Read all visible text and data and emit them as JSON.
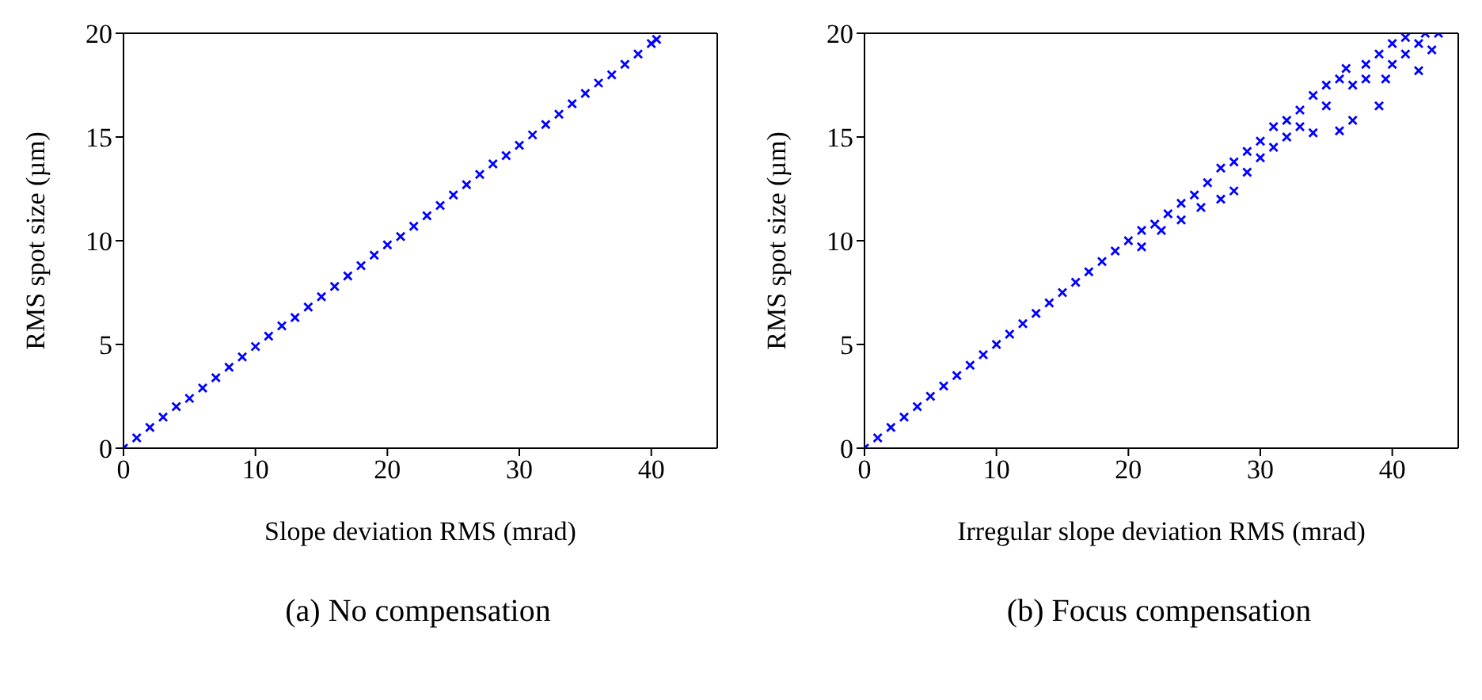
{
  "chart_data": [
    {
      "type": "scatter",
      "title": "(a) No compensation",
      "xlabel": "Slope deviation RMS (mrad)",
      "ylabel": "RMS spot size (µm)",
      "xlim": [
        0,
        45
      ],
      "ylim": [
        0,
        20
      ],
      "xticks": [
        0,
        10,
        20,
        30,
        40
      ],
      "yticks": [
        0,
        5,
        10,
        15,
        20
      ],
      "marker": "cross",
      "grid": false,
      "series": [
        {
          "color": "#0000ff",
          "x": [
            0,
            1,
            2,
            3,
            4,
            5,
            6,
            7,
            8,
            9,
            10,
            11,
            12,
            13,
            14,
            15,
            16,
            17,
            18,
            19,
            20,
            21,
            22,
            23,
            24,
            25,
            26,
            27,
            28,
            29,
            30,
            31,
            32,
            33,
            34,
            35,
            36,
            37,
            38,
            39,
            40,
            40.4
          ],
          "values": [
            0,
            0.5,
            1,
            1.5,
            2,
            2.4,
            2.9,
            3.4,
            3.9,
            4.4,
            4.9,
            5.4,
            5.9,
            6.3,
            6.8,
            7.3,
            7.8,
            8.3,
            8.8,
            9.3,
            9.8,
            10.2,
            10.7,
            11.2,
            11.7,
            12.2,
            12.7,
            13.2,
            13.7,
            14.1,
            14.6,
            15.1,
            15.6,
            16.1,
            16.6,
            17.1,
            17.6,
            18.0,
            18.5,
            19.0,
            19.5,
            19.7
          ]
        }
      ]
    },
    {
      "type": "scatter",
      "title": "(b) Focus compensation",
      "xlabel": "Irregular slope deviation RMS (mrad)",
      "ylabel": "RMS spot size (µm)",
      "xlim": [
        0,
        45
      ],
      "ylim": [
        0,
        20
      ],
      "xticks": [
        0,
        10,
        20,
        30,
        40
      ],
      "yticks": [
        0,
        5,
        10,
        15,
        20
      ],
      "marker": "cross",
      "grid": false,
      "series": [
        {
          "color": "#0000ff",
          "x": [
            0,
            1,
            2,
            3,
            4,
            5,
            6,
            7,
            8,
            9,
            10,
            11,
            12,
            13,
            14,
            15,
            16,
            17,
            18,
            19,
            20,
            21,
            21,
            22,
            22.5,
            23,
            24,
            24,
            25,
            25.5,
            26,
            27,
            27,
            28,
            28,
            29,
            29,
            30,
            30,
            31,
            31,
            32,
            32,
            33,
            33,
            34,
            34,
            35,
            35,
            36,
            36,
            36.5,
            37,
            37,
            38,
            38,
            39,
            39,
            39.5,
            40,
            40,
            41,
            41,
            42,
            42,
            42.5,
            43,
            43.5
          ],
          "values": [
            0,
            0.5,
            1,
            1.5,
            2,
            2.5,
            3,
            3.5,
            4,
            4.5,
            5,
            5.5,
            6,
            6.5,
            7,
            7.5,
            8,
            8.5,
            9,
            9.5,
            10,
            10.5,
            9.7,
            10.8,
            10.5,
            11.3,
            11.8,
            11,
            12.2,
            11.6,
            12.8,
            13.5,
            12,
            13.8,
            12.4,
            14.3,
            13.3,
            14.8,
            14,
            15.5,
            14.5,
            15.8,
            15,
            16.3,
            15.5,
            17,
            15.2,
            17.5,
            16.5,
            17.8,
            15.3,
            18.3,
            17.5,
            15.8,
            18.5,
            17.8,
            19,
            16.5,
            17.8,
            19.5,
            18.5,
            19.8,
            19,
            19.5,
            18.2,
            20,
            19.2,
            20
          ]
        }
      ]
    }
  ]
}
